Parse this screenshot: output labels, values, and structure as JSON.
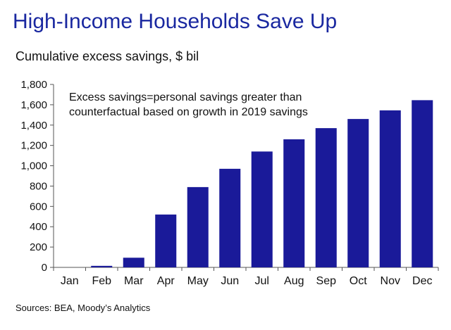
{
  "header": {
    "title": "High-Income Households Save Up",
    "subtitle": "Cumulative excess savings, $ bil"
  },
  "annotation": {
    "line1": "Excess savings=personal savings greater than",
    "line2": "counterfactual based on growth in 2019 savings"
  },
  "footer": {
    "source": "Sources: BEA, Moody’s Analytics"
  },
  "colors": {
    "title": "#1a28a0",
    "bar": "#1a1a99",
    "axis": "#555555"
  },
  "chart_data": {
    "type": "bar",
    "title": "High-Income Households Save Up",
    "subtitle": "Cumulative excess savings, $ bil",
    "xlabel": "",
    "ylabel": "",
    "categories": [
      "Jan",
      "Feb",
      "Mar",
      "Apr",
      "May",
      "Jun",
      "Jul",
      "Aug",
      "Sep",
      "Oct",
      "Nov",
      "Dec"
    ],
    "values": [
      0,
      15,
      95,
      520,
      790,
      970,
      1140,
      1260,
      1370,
      1460,
      1545,
      1645
    ],
    "ylim": [
      0,
      1800
    ],
    "yticks": [
      0,
      200,
      400,
      600,
      800,
      1000,
      1200,
      1400,
      1600,
      1800
    ],
    "ytick_labels": [
      "0",
      "200",
      "400",
      "600",
      "800",
      "1,000",
      "1,200",
      "1,400",
      "1,600",
      "1,800"
    ],
    "grid": false,
    "legend": "none"
  }
}
